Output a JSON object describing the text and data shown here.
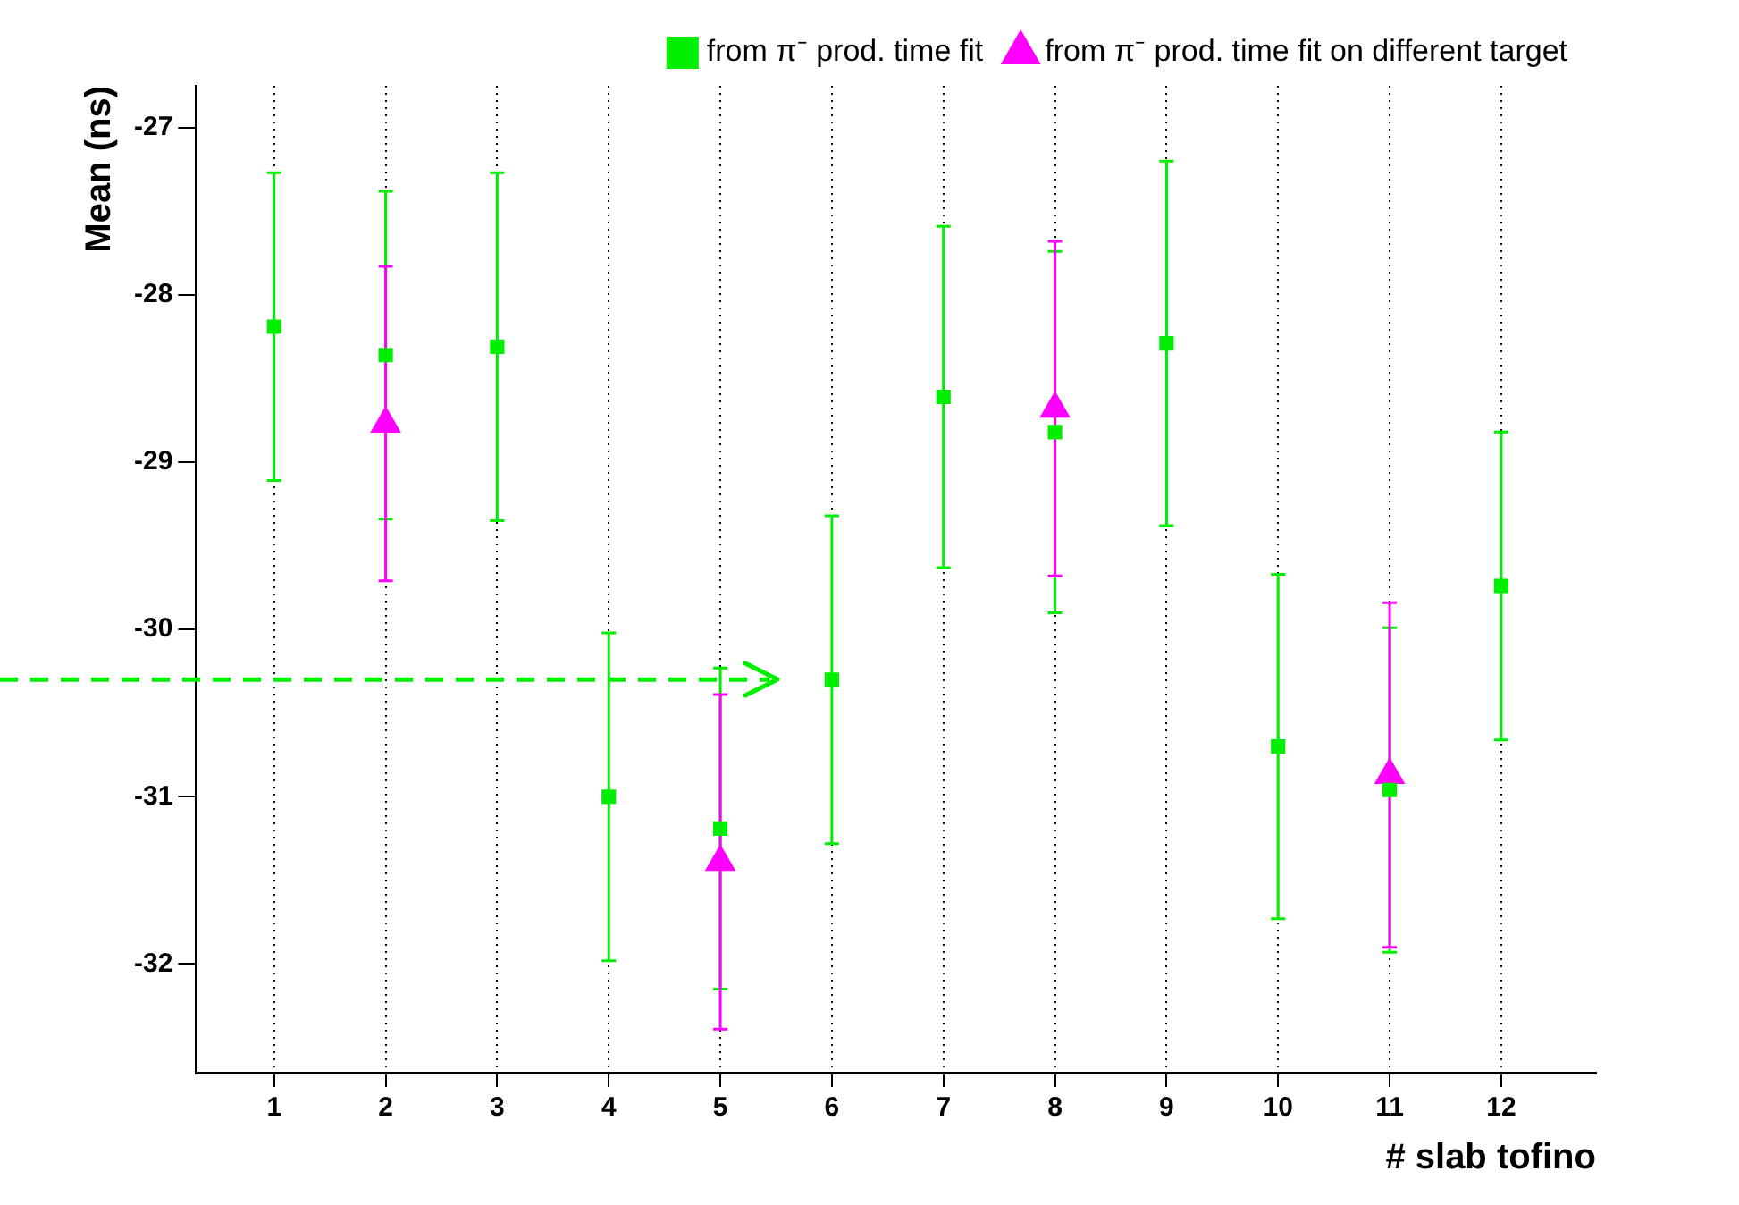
{
  "chart_data": {
    "type": "scatter",
    "xlabel": "# slab tofino",
    "ylabel": "Mean (ns)",
    "series": [
      {
        "name": "from π⁻ prod. time fit",
        "color": "#00ee00",
        "marker": "square",
        "x": [
          1,
          2,
          3,
          4,
          5,
          6,
          7,
          8,
          9,
          10,
          11,
          12
        ],
        "values": [
          -28.19,
          -28.36,
          -28.31,
          -31.0,
          -31.19,
          -30.3,
          -28.61,
          -28.82,
          -28.29,
          -30.7,
          -30.96,
          -29.74
        ],
        "errors": [
          0.92,
          0.98,
          1.04,
          0.98,
          0.96,
          0.98,
          1.02,
          1.08,
          1.09,
          1.03,
          0.97,
          0.92
        ]
      },
      {
        "name": "from π⁻ prod. time fit on different target",
        "color": "#ff00ff",
        "marker": "triangle",
        "x": [
          2,
          5,
          8,
          11
        ],
        "values": [
          -28.77,
          -31.39,
          -28.68,
          -30.87
        ],
        "errors": [
          0.94,
          1.0,
          1.0,
          1.03
        ]
      }
    ],
    "xlim": [
      0.3,
      12.85
    ],
    "xticks": [
      1,
      2,
      3,
      4,
      5,
      6,
      7,
      8,
      9,
      10,
      11,
      12
    ],
    "ylim": [
      -32.65,
      -26.75
    ],
    "yticks": [
      -32,
      -31,
      -30,
      -29,
      -28,
      -27
    ],
    "grid": "x",
    "legend": "top right",
    "ref_lines": [
      {
        "axis": "y",
        "value": -30.3,
        "color": "#00ee00",
        "line_style": "dashed"
      }
    ]
  }
}
